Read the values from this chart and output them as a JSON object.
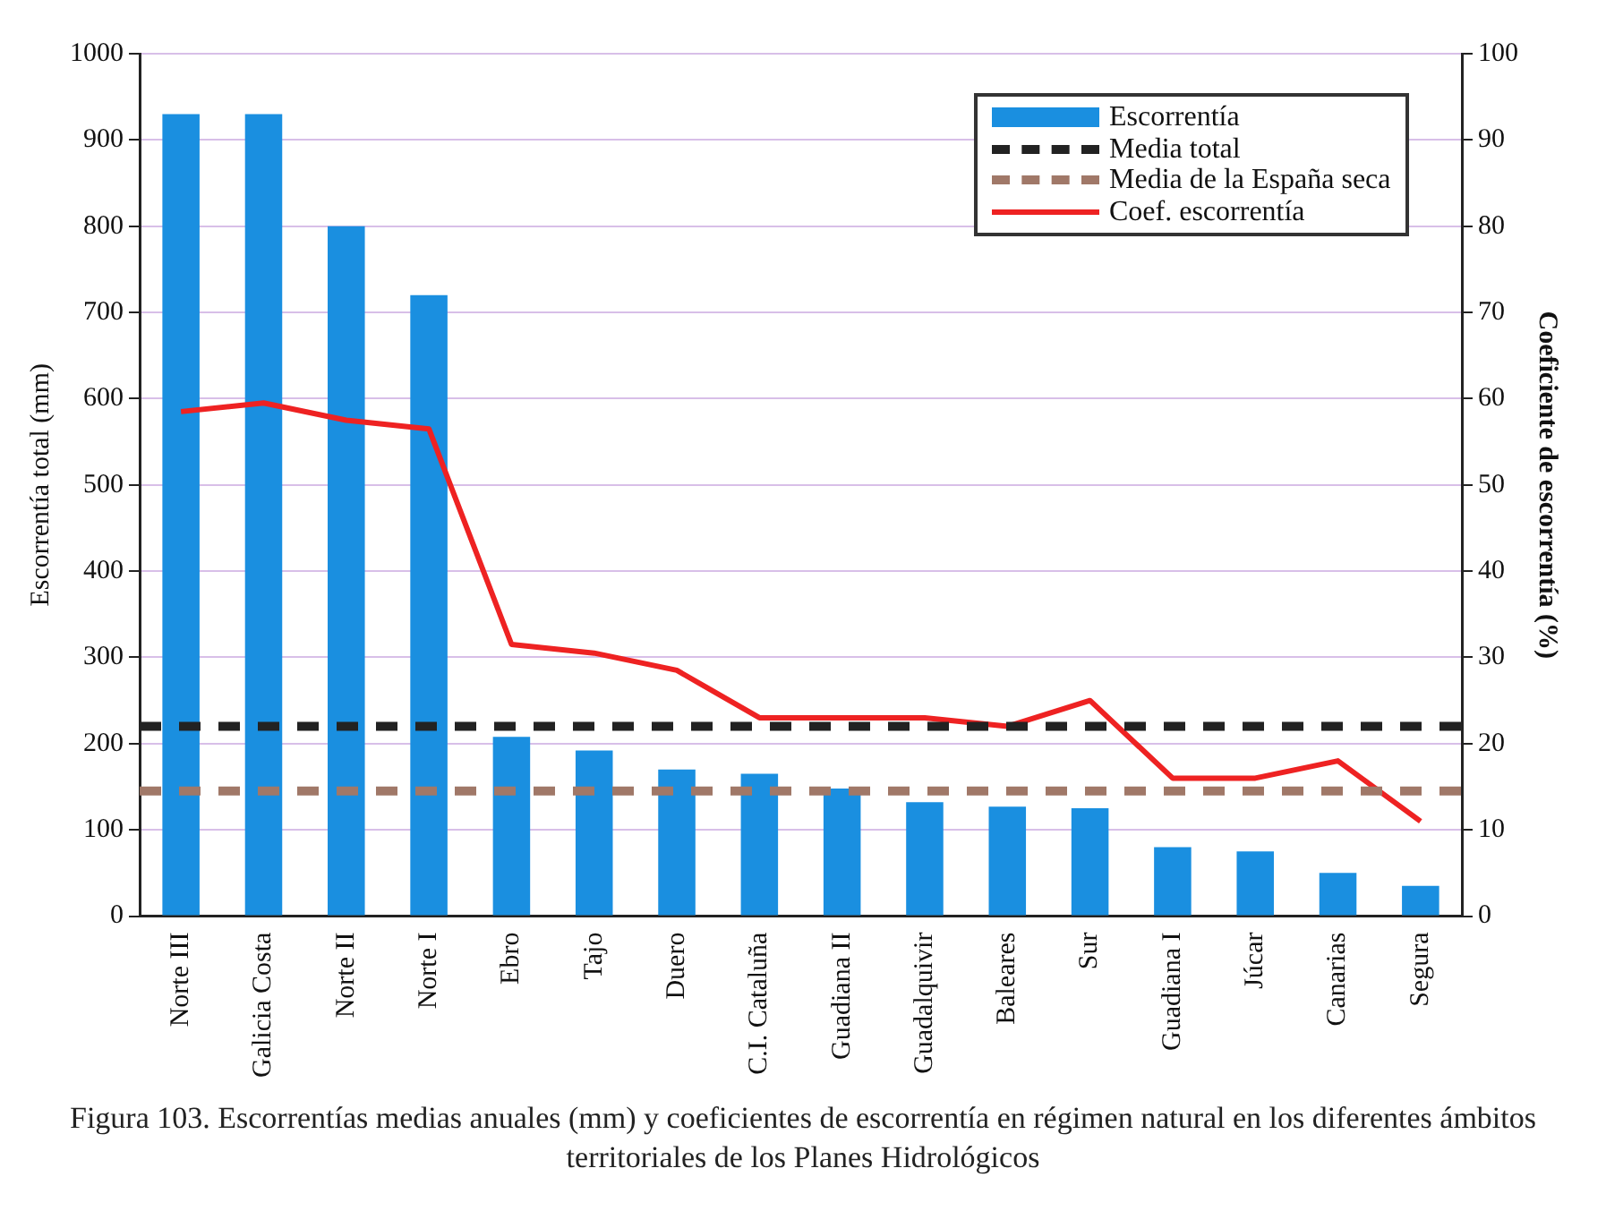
{
  "chart_data": {
    "type": "bar",
    "ylabel": "Escorrentía total (mm)",
    "y2label": "Coeficiente de escorrentía (%)",
    "categories": [
      "Norte III",
      "Galicia Costa",
      "Norte II",
      "Norte I",
      "Ebro",
      "Tajo",
      "Duero",
      "C.I. Cataluña",
      "Guadiana II",
      "Guadalquivir",
      "Baleares",
      "Sur",
      "Guadiana I",
      "Júcar",
      "Canarias",
      "Segura"
    ],
    "series": [
      {
        "name": "Escorrentía",
        "color": "#1a8fe0",
        "values": [
          930,
          930,
          800,
          720,
          208,
          192,
          170,
          165,
          148,
          132,
          127,
          125,
          80,
          75,
          50,
          35
        ]
      },
      {
        "name": "Coef. escorrentía",
        "type": "line",
        "axis": "y2",
        "color": "#ee2222",
        "values": [
          58.5,
          59.5,
          57.5,
          56.5,
          31.5,
          30.5,
          28.5,
          23,
          23,
          23,
          22,
          25,
          16,
          16,
          18,
          11
        ]
      }
    ],
    "ref_lines": [
      {
        "axis": "y",
        "value": 220,
        "label": "Media total",
        "color": "#222222",
        "line_style": "dashed"
      },
      {
        "axis": "y",
        "value": 145,
        "label": "Media de la España seca",
        "color": "#a07868",
        "line_style": "dashed"
      }
    ],
    "ylim": [
      0,
      1000
    ],
    "yticks": [
      0,
      100,
      200,
      300,
      400,
      500,
      600,
      700,
      800,
      900,
      1000
    ],
    "y2lim": [
      0,
      100
    ],
    "y2ticks": [
      0,
      10,
      20,
      30,
      40,
      50,
      60,
      70,
      80,
      90,
      100
    ],
    "grid": "y",
    "legend": "top right",
    "marker": "none",
    "annotations": [
      "Figura 103. Escorrentías medias anuales (mm) y coeficientes de escorrentía en régimen natural en los diferentes ámbitos territoriales de los Planes Hidrológicos"
    ]
  }
}
